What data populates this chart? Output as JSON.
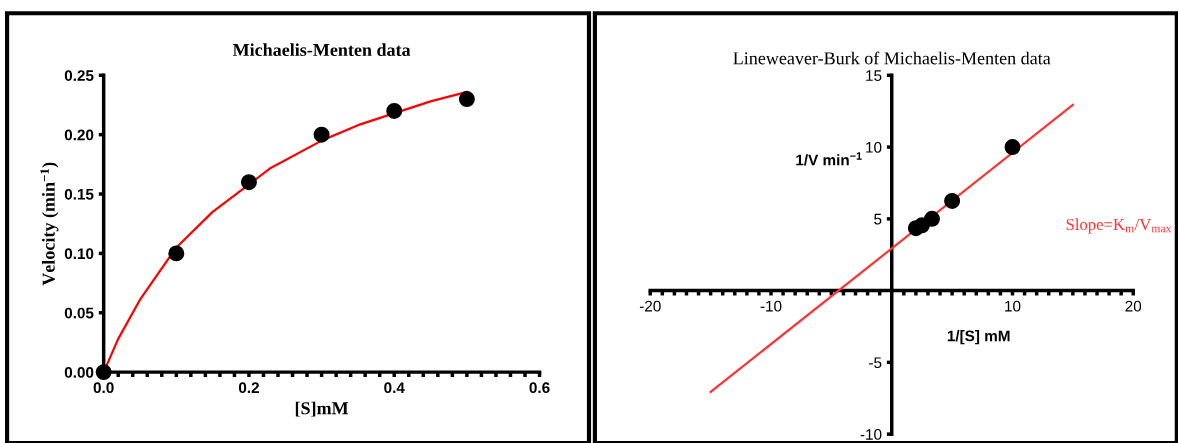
{
  "chart_data": [
    {
      "type": "scatter",
      "title": "Michaelis-Menten data",
      "xlabel": "[S]mM",
      "ylabel": "Velocity (min$^{−1}$)",
      "series": [
        {
          "color": "#000000",
          "marker": "circle",
          "x": [
            0,
            0.1,
            0.2,
            0.3,
            0.4,
            0.5
          ],
          "values": [
            0,
            0.1,
            0.16,
            0.2,
            0.22,
            0.23
          ]
        },
        {
          "type": "line",
          "color": "#ff0000",
          "x": [
            0,
            0.02,
            0.05,
            0.1,
            0.15,
            0.23,
            0.3,
            0.35,
            0.45,
            0.5
          ],
          "values": [
            0,
            0.028,
            0.061,
            0.105,
            0.135,
            0.172,
            0.195,
            0.208,
            0.228,
            0.236
          ]
        }
      ],
      "xlim": [
        0,
        0.6
      ],
      "ylim": [
        0,
        0.25
      ],
      "xticks": [
        {
          "value": 0,
          "label": "0.0"
        },
        {
          "value": 0.02,
          "label": null
        },
        {
          "value": 0.04,
          "label": null
        },
        {
          "value": 0.06,
          "label": null
        },
        {
          "value": 0.08,
          "label": null
        },
        {
          "value": 0.1,
          "label": null
        },
        {
          "value": 0.12,
          "label": null
        },
        {
          "value": 0.14,
          "label": null
        },
        {
          "value": 0.16,
          "label": null
        },
        {
          "value": 0.18,
          "label": null
        },
        {
          "value": 0.2,
          "label": "0.2"
        },
        {
          "value": 0.22,
          "label": null
        },
        {
          "value": 0.24,
          "label": null
        },
        {
          "value": 0.26,
          "label": null
        },
        {
          "value": 0.28,
          "label": null
        },
        {
          "value": 0.3,
          "label": null
        },
        {
          "value": 0.32,
          "label": null
        },
        {
          "value": 0.34,
          "label": null
        },
        {
          "value": 0.36,
          "label": null
        },
        {
          "value": 0.38,
          "label": null
        },
        {
          "value": 0.4,
          "label": "0.4"
        },
        {
          "value": 0.42,
          "label": null
        },
        {
          "value": 0.44,
          "label": null
        },
        {
          "value": 0.46,
          "label": null
        },
        {
          "value": 0.48,
          "label": null
        },
        {
          "value": 0.5,
          "label": null
        },
        {
          "value": 0.52,
          "label": null
        },
        {
          "value": 0.54,
          "label": null
        },
        {
          "value": 0.56,
          "label": null
        },
        {
          "value": 0.58,
          "label": null
        },
        {
          "value": 0.6,
          "label": "0.6"
        }
      ],
      "yticks": [
        {
          "value": 0,
          "label": "0.00"
        },
        {
          "value": 0.05,
          "label": "0.05"
        },
        {
          "value": 0.1,
          "label": "0.10"
        },
        {
          "value": 0.15,
          "label": "0.15"
        },
        {
          "value": 0.2,
          "label": "0.20"
        },
        {
          "value": 0.25,
          "label": "0.25"
        }
      ],
      "grid": false,
      "legend": false
    },
    {
      "type": "scatter",
      "title": "Lineweaver-Burk of Michaelis-Menten data",
      "xlabel": "1/[S] mM",
      "ylabel": "1/V min$^{−1}$",
      "annotations": [
        "Slope=K$_{m}$/V$_{max}$"
      ],
      "series": [
        {
          "color": "#000000",
          "marker": "circle",
          "x": [
            2,
            2.5,
            3.33,
            5,
            10
          ],
          "values": [
            4.35,
            4.55,
            5.0,
            6.25,
            10
          ]
        },
        {
          "type": "line",
          "color": "#ff3333",
          "x": [
            -15,
            15
          ],
          "values": [
            -7.06,
            12.94
          ]
        }
      ],
      "xlim": [
        -20,
        20
      ],
      "ylim": [
        -10,
        15
      ],
      "xticks": [
        -20,
        {
          "value": -19,
          "label": null
        },
        {
          "value": -18,
          "label": null
        },
        {
          "value": -17,
          "label": null
        },
        {
          "value": -16,
          "label": null
        },
        {
          "value": -15,
          "label": null
        },
        {
          "value": -14,
          "label": null
        },
        {
          "value": -13,
          "label": null
        },
        {
          "value": -12,
          "label": null
        },
        {
          "value": -11,
          "label": null
        },
        -10,
        {
          "value": -9,
          "label": null
        },
        {
          "value": -8,
          "label": null
        },
        {
          "value": -7,
          "label": null
        },
        {
          "value": -6,
          "label": null
        },
        {
          "value": -5,
          "label": null
        },
        {
          "value": -4,
          "label": null
        },
        {
          "value": -3,
          "label": null
        },
        {
          "value": -2,
          "label": null
        },
        {
          "value": -1,
          "label": null
        },
        {
          "value": 1,
          "label": null
        },
        {
          "value": 2,
          "label": null
        },
        {
          "value": 3,
          "label": null
        },
        {
          "value": 4,
          "label": null
        },
        {
          "value": 5,
          "label": null
        },
        {
          "value": 6,
          "label": null
        },
        {
          "value": 7,
          "label": null
        },
        {
          "value": 8,
          "label": null
        },
        {
          "value": 9,
          "label": null
        },
        10,
        {
          "value": 11,
          "label": null
        },
        {
          "value": 12,
          "label": null
        },
        {
          "value": 13,
          "label": null
        },
        {
          "value": 14,
          "label": null
        },
        {
          "value": 15,
          "label": null
        },
        {
          "value": 16,
          "label": null
        },
        {
          "value": 17,
          "label": null
        },
        {
          "value": 18,
          "label": null
        },
        {
          "value": 19,
          "label": null
        },
        20
      ],
      "yticks": [
        -10,
        -5,
        5,
        10,
        15
      ],
      "grid": false,
      "legend": false
    }
  ]
}
